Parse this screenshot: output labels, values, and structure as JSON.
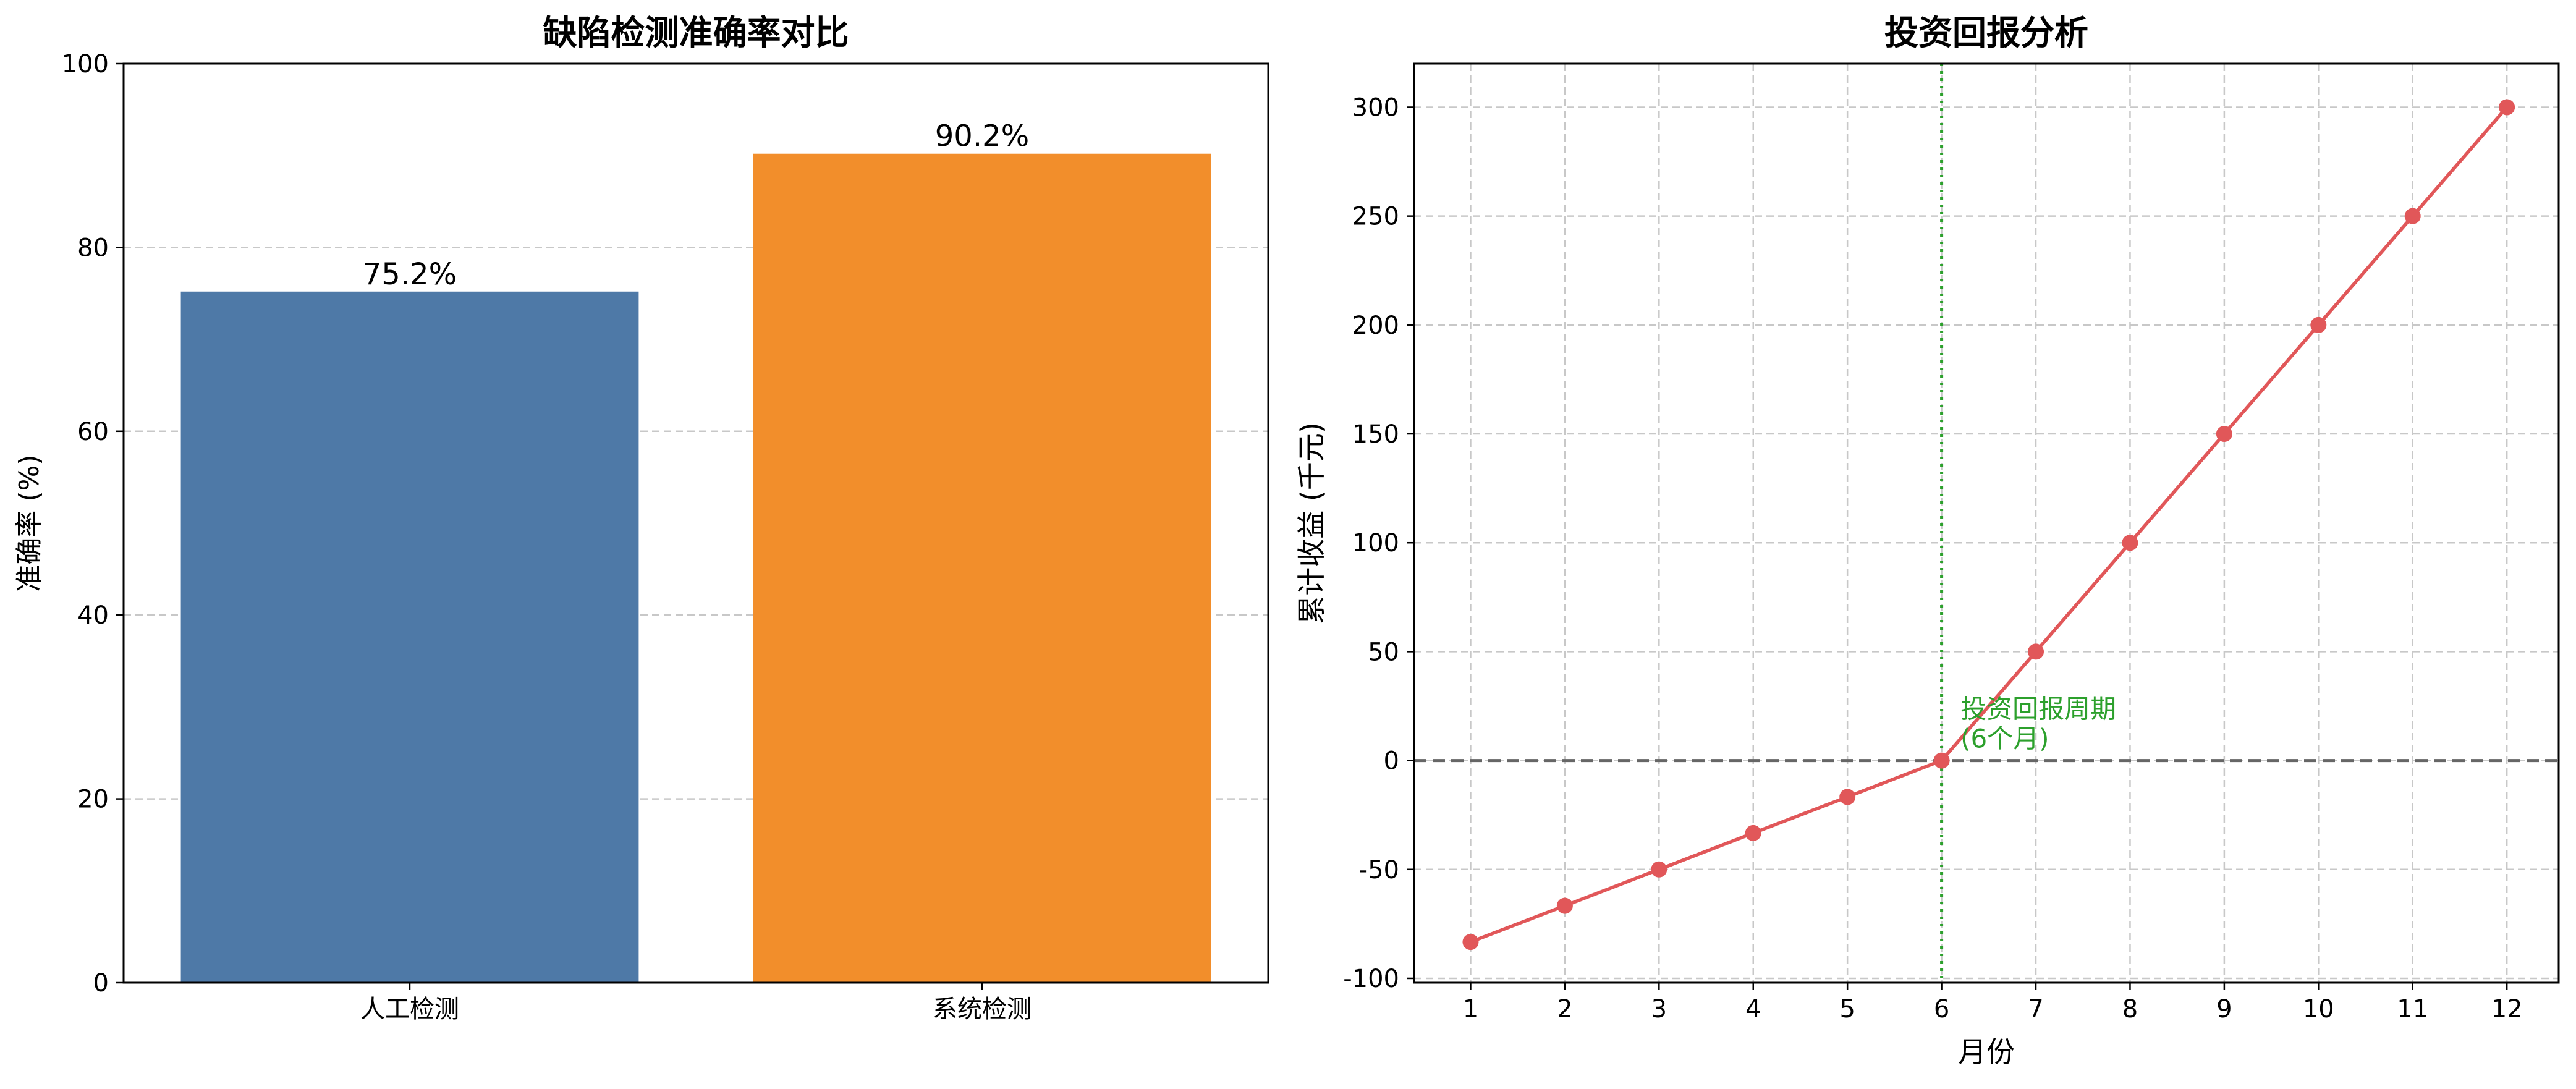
{
  "chart_data": [
    {
      "type": "bar",
      "title": "缺陷检测准确率对比",
      "xlabel": "",
      "ylabel": "准确率 (%)",
      "categories": [
        "人工检测",
        "系统检测"
      ],
      "values": [
        75.2,
        90.2
      ],
      "value_labels": [
        "75.2%",
        "90.2%"
      ],
      "colors": [
        "#4e79a7",
        "#f28e2b"
      ],
      "ylim": [
        0,
        100
      ],
      "yticks": [
        0,
        20,
        40,
        60,
        80,
        100
      ],
      "grid": "y-dashed",
      "legend": "none"
    },
    {
      "type": "line",
      "title": "投资回报分析",
      "xlabel": "月份",
      "ylabel": "累计收益 (千元)",
      "x": [
        1,
        2,
        3,
        4,
        5,
        6,
        7,
        8,
        9,
        10,
        11,
        12
      ],
      "series": [
        {
          "values": [
            -83.3,
            -66.7,
            -50,
            -33.3,
            -16.7,
            0,
            50,
            100,
            150,
            200,
            250,
            300
          ],
          "color": "#e15759"
        }
      ],
      "xlim": [
        0.4,
        12.55
      ],
      "ylim": [
        -102,
        320
      ],
      "xticks": [
        1,
        2,
        3,
        4,
        5,
        6,
        7,
        8,
        9,
        10,
        11,
        12
      ],
      "yticks": [
        -100,
        -50,
        0,
        50,
        100,
        150,
        200,
        250,
        300
      ],
      "grid": "both-dashed",
      "reference_lines": [
        {
          "axis": "y",
          "value": 0,
          "style": "dashed",
          "color": "#666666"
        },
        {
          "axis": "x",
          "value": 6,
          "style": "dotted",
          "color": "#2ca02c"
        }
      ],
      "annotation": {
        "text_lines": [
          "投资回报周期",
          "(6个月)"
        ],
        "color": "#2ca02c",
        "x": 6.2,
        "y": 15
      }
    }
  ]
}
